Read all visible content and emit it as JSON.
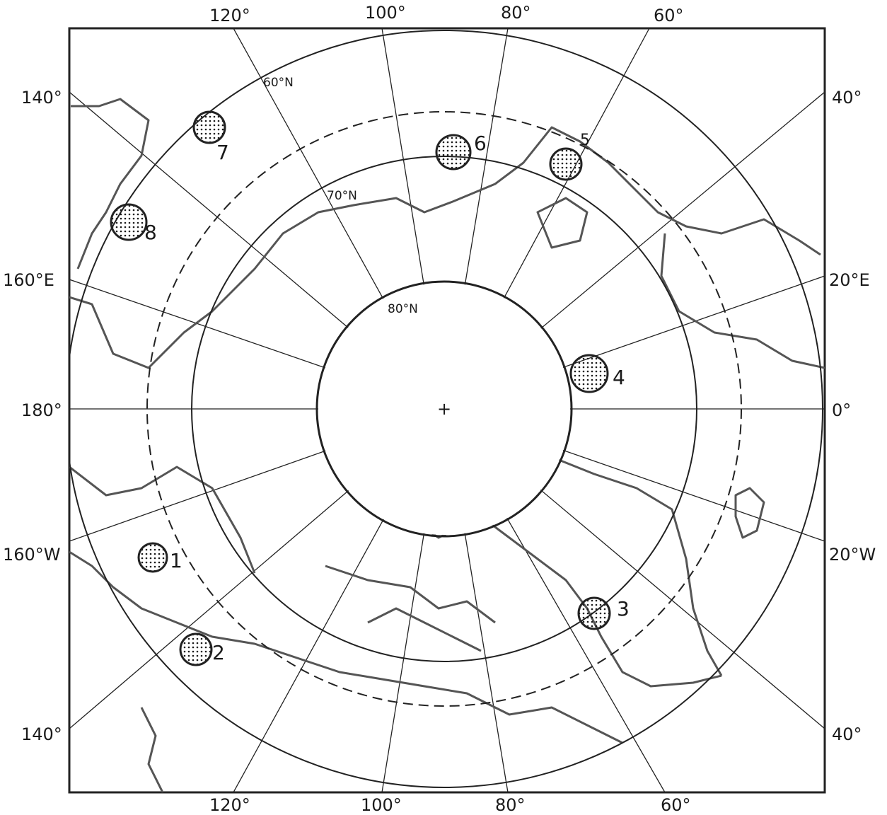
{
  "map": {
    "pole_marker": "+",
    "latitude_labels": [
      {
        "id": "lat-60",
        "text": "60°N"
      },
      {
        "id": "lat-70",
        "text": "70°N"
      },
      {
        "id": "lat-80",
        "text": "80°N"
      }
    ],
    "longitude_labels": {
      "top": [
        "120°",
        "100°",
        "80°",
        "60°"
      ],
      "bottom": [
        "120°",
        "100°",
        "80°",
        "60°"
      ],
      "left": [
        "140°",
        "160°E",
        "180°",
        "160°W",
        "140°"
      ],
      "right": [
        "40°",
        "20°E",
        "0°",
        "20°W",
        "40°"
      ]
    },
    "sites": [
      "1",
      "2",
      "3",
      "4",
      "5",
      "6",
      "7",
      "8"
    ],
    "colors": {
      "ink": "#1a1a1a",
      "coast": "#555555",
      "paper": "#ffffff"
    }
  }
}
